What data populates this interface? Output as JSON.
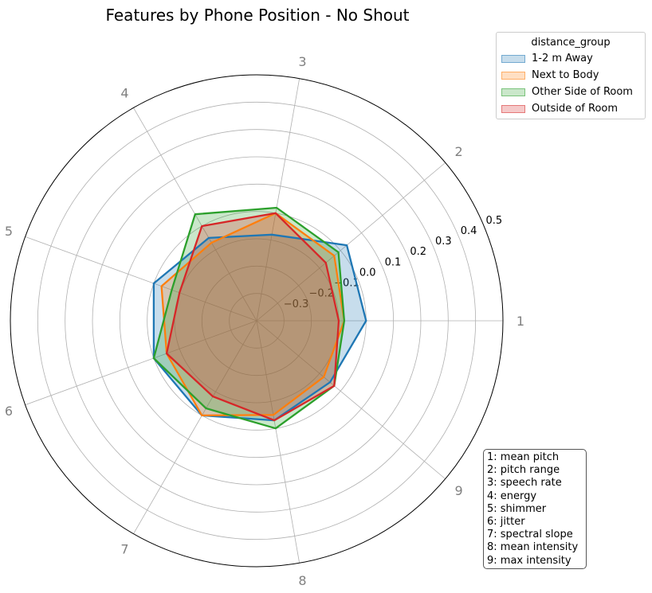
{
  "chart_data": {
    "type": "radar",
    "title": "Features by Phone Position - No Shout",
    "axes": [
      "1",
      "2",
      "3",
      "4",
      "5",
      "6",
      "7",
      "8",
      "9"
    ],
    "rlim": [
      -0.4,
      0.5
    ],
    "rticks": [
      -0.3,
      -0.2,
      -0.1,
      0.0,
      0.1,
      0.2,
      0.3,
      0.4,
      0.5
    ],
    "rtick_labels": [
      "−0.3",
      "−0.2",
      "−0.1",
      "0.0",
      "0.1",
      "0.2",
      "0.3",
      "0.4",
      "0.5"
    ],
    "grid": true,
    "legend": {
      "title": "distance_group",
      "placement": "upper-right-outside"
    },
    "series": [
      {
        "name": "1-2 m Away",
        "color": "#1f77b4",
        "values": [
          0.0,
          0.03,
          -0.08,
          -0.05,
          0.0,
          0.0,
          0.0,
          -0.03,
          -0.05
        ]
      },
      {
        "name": "Next to Body",
        "color": "#ff7f0e",
        "values": [
          -0.08,
          -0.03,
          0.0,
          -0.07,
          -0.03,
          -0.05,
          0.0,
          -0.05,
          -0.08
        ]
      },
      {
        "name": "Other Side of Room",
        "color": "#2ca02c",
        "values": [
          -0.08,
          -0.01,
          0.02,
          0.05,
          -0.07,
          0.0,
          -0.03,
          0.0,
          -0.03
        ]
      },
      {
        "name": "Outside of Room",
        "color": "#d62728",
        "values": [
          -0.1,
          -0.07,
          0.0,
          0.0,
          -0.1,
          -0.05,
          -0.08,
          -0.03,
          -0.03
        ]
      }
    ],
    "feature_key": [
      "1: mean pitch",
      "2: pitch range",
      "3: speech rate",
      "4: energy",
      "5: shimmer",
      "6: jitter",
      "7: spectral slope",
      "8: mean intensity",
      "9: max intensity"
    ]
  }
}
